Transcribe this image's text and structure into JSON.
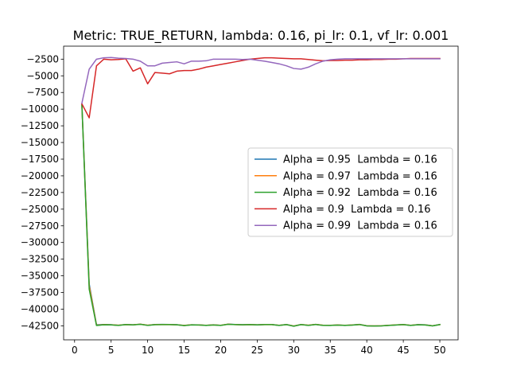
{
  "chart_data": {
    "type": "line",
    "title": "Metric: TRUE_RETURN, lambda: 0.16, pi_lr: 0.1, vf_lr: 0.001",
    "xlabel": "",
    "ylabel": "",
    "xlim": [
      -1.5,
      52.5
    ],
    "ylim": [
      -44600,
      -550
    ],
    "grid": false,
    "legend_position": "center-right",
    "x_ticks": [
      0,
      5,
      10,
      15,
      20,
      25,
      30,
      35,
      40,
      45,
      50
    ],
    "y_ticks": [
      -42500,
      -40000,
      -37500,
      -35000,
      -32500,
      -30000,
      -27500,
      -25000,
      -22500,
      -20000,
      -17500,
      -15000,
      -12500,
      -10000,
      -7500,
      -5000,
      -2500
    ],
    "x": [
      1,
      2,
      3,
      4,
      5,
      6,
      7,
      8,
      9,
      10,
      11,
      12,
      13,
      14,
      15,
      16,
      17,
      18,
      19,
      20,
      21,
      22,
      23,
      24,
      25,
      26,
      27,
      28,
      29,
      30,
      31,
      32,
      33,
      34,
      35,
      36,
      37,
      38,
      39,
      40,
      41,
      42,
      43,
      44,
      45,
      46,
      47,
      48,
      49,
      50
    ],
    "series": [
      {
        "name": "Alpha = 0.95  Lambda = 0.16",
        "color": "#1f77b4",
        "values": [
          -9300,
          -36200,
          -42350,
          -42300,
          -42330,
          -42420,
          -42300,
          -42350,
          -42250,
          -42420,
          -42300,
          -42290,
          -42300,
          -42330,
          -42450,
          -42350,
          -42360,
          -42430,
          -42350,
          -42430,
          -42250,
          -42300,
          -42330,
          -42300,
          -42350,
          -42300,
          -42300,
          -42430,
          -42300,
          -42540,
          -42300,
          -42420,
          -42280,
          -42420,
          -42430,
          -42380,
          -42430,
          -42380,
          -42290,
          -42500,
          -42520,
          -42500,
          -42430,
          -42370,
          -42300,
          -42430,
          -42320,
          -42350,
          -42500,
          -42300
        ]
      },
      {
        "name": "Alpha = 0.97  Lambda = 0.16",
        "color": "#ff7f0e",
        "values": [
          -9300,
          -36500,
          -42400,
          -42320,
          -42350,
          -42400,
          -42310,
          -42340,
          -42260,
          -42410,
          -42320,
          -42300,
          -42310,
          -42340,
          -42440,
          -42340,
          -42370,
          -42420,
          -42360,
          -42420,
          -42260,
          -42310,
          -42340,
          -42310,
          -42340,
          -42310,
          -42310,
          -42420,
          -42310,
          -42530,
          -42310,
          -42410,
          -42290,
          -42410,
          -42420,
          -42370,
          -42420,
          -42370,
          -42300,
          -42490,
          -42510,
          -42490,
          -42420,
          -42360,
          -42310,
          -42420,
          -42330,
          -42360,
          -42490,
          -42310
        ]
      },
      {
        "name": "Alpha = 0.92  Lambda = 0.16",
        "color": "#2ca02c",
        "values": [
          -9400,
          -37000,
          -42450,
          -42340,
          -42360,
          -42430,
          -42320,
          -42360,
          -42270,
          -42430,
          -42330,
          -42310,
          -42320,
          -42350,
          -42460,
          -42360,
          -42380,
          -42440,
          -42370,
          -42440,
          -42270,
          -42320,
          -42350,
          -42320,
          -42360,
          -42320,
          -42320,
          -42440,
          -42320,
          -42550,
          -42320,
          -42430,
          -42300,
          -42430,
          -42440,
          -42390,
          -42440,
          -42390,
          -42310,
          -42510,
          -42530,
          -42510,
          -42440,
          -42380,
          -42320,
          -42440,
          -42340,
          -42370,
          -42510,
          -42320
        ]
      },
      {
        "name": "Alpha = 0.9  Lambda = 0.16",
        "color": "#d62728",
        "values": [
          -9200,
          -11300,
          -3500,
          -2500,
          -2600,
          -2550,
          -2450,
          -4300,
          -3800,
          -6200,
          -4500,
          -4600,
          -4700,
          -4300,
          -4200,
          -4200,
          -4000,
          -3700,
          -3500,
          -3300,
          -3100,
          -2900,
          -2700,
          -2500,
          -2400,
          -2300,
          -2300,
          -2350,
          -2400,
          -2450,
          -2450,
          -2550,
          -2650,
          -2750,
          -2700,
          -2700,
          -2650,
          -2650,
          -2600,
          -2600,
          -2550,
          -2550,
          -2500,
          -2500,
          -2450,
          -2400,
          -2400,
          -2400,
          -2400,
          -2400
        ]
      },
      {
        "name": "Alpha = 0.99  Lambda = 0.16",
        "color": "#9467bd",
        "values": [
          -9100,
          -4000,
          -2500,
          -2300,
          -2250,
          -2350,
          -2400,
          -2500,
          -2800,
          -3500,
          -3500,
          -3100,
          -3000,
          -2900,
          -3200,
          -2800,
          -2800,
          -2750,
          -2500,
          -2500,
          -2500,
          -2500,
          -2550,
          -2500,
          -2650,
          -2800,
          -3000,
          -3200,
          -3500,
          -3900,
          -4000,
          -3700,
          -3200,
          -2800,
          -2600,
          -2500,
          -2450,
          -2450,
          -2450,
          -2450,
          -2450,
          -2450,
          -2450,
          -2450,
          -2450,
          -2450,
          -2450,
          -2450,
          -2450,
          -2450
        ]
      }
    ]
  }
}
